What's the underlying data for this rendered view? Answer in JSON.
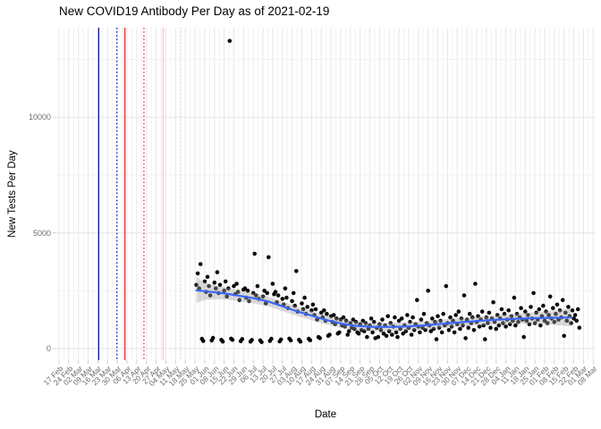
{
  "chart_data": {
    "type": "scatter",
    "title": "New COVID19 Antibody Per Day as of 2021-02-19",
    "xlabel": "Date",
    "ylabel": "New Tests Per Day",
    "y_ticks": [
      0,
      5000,
      10000
    ],
    "y_minor_ticks": [
      2500,
      7500,
      12500
    ],
    "x_tick_labels": [
      "17 Feb",
      "24 Feb",
      "02 Mar",
      "09 Mar",
      "16 Mar",
      "23 Mar",
      "30 Mar",
      "06 Apr",
      "13 Apr",
      "20 Apr",
      "27 Apr",
      "04 May",
      "11 May",
      "18 May",
      "25 May",
      "01 Jun",
      "08 Jun",
      "15 Jun",
      "22 Jun",
      "29 Jun",
      "06 Jul",
      "13 Jul",
      "20 Jul",
      "27 Jul",
      "03 Aug",
      "10 Aug",
      "17 Aug",
      "24 Aug",
      "31 Aug",
      "07 Sep",
      "14 Sep",
      "21 Sep",
      "28 Sep",
      "05 Oct",
      "12 Oct",
      "19 Oct",
      "26 Oct",
      "02 Nov",
      "09 Nov",
      "16 Nov",
      "23 Nov",
      "30 Nov",
      "07 Dec",
      "14 Dec",
      "21 Dec",
      "28 Dec",
      "04 Jan",
      "11 Jan",
      "18 Jan",
      "25 Jan",
      "01 Feb",
      "08 Feb",
      "15 Feb",
      "22 Feb",
      "01 Mar",
      "08 Mar"
    ],
    "x_tick_interval_days": 7,
    "grid": true,
    "legend": false,
    "points": [
      [
        99,
        2750
      ],
      [
        100,
        3250
      ],
      [
        101,
        2600
      ],
      [
        102,
        3650
      ],
      [
        103,
        420
      ],
      [
        104,
        330
      ],
      [
        105,
        2900
      ],
      [
        106,
        2450
      ],
      [
        107,
        3100
      ],
      [
        108,
        2700
      ],
      [
        109,
        2300
      ],
      [
        110,
        350
      ],
      [
        111,
        460
      ],
      [
        112,
        2850
      ],
      [
        113,
        2600
      ],
      [
        114,
        3300
      ],
      [
        115,
        2400
      ],
      [
        116,
        2750
      ],
      [
        117,
        380
      ],
      [
        118,
        300
      ],
      [
        119,
        2500
      ],
      [
        120,
        2900
      ],
      [
        121,
        2250
      ],
      [
        122,
        2600
      ],
      [
        123,
        13300
      ],
      [
        124,
        430
      ],
      [
        125,
        380
      ],
      [
        126,
        2700
      ],
      [
        127,
        2350
      ],
      [
        128,
        2800
      ],
      [
        129,
        2450
      ],
      [
        130,
        2100
      ],
      [
        131,
        320
      ],
      [
        132,
        410
      ],
      [
        133,
        2550
      ],
      [
        134,
        2600
      ],
      [
        135,
        2200
      ],
      [
        136,
        2500
      ],
      [
        137,
        2050
      ],
      [
        138,
        300
      ],
      [
        139,
        370
      ],
      [
        140,
        2400
      ],
      [
        141,
        4100
      ],
      [
        142,
        2300
      ],
      [
        143,
        2700
      ],
      [
        144,
        2150
      ],
      [
        145,
        350
      ],
      [
        146,
        280
      ],
      [
        147,
        2250
      ],
      [
        148,
        2500
      ],
      [
        149,
        1950
      ],
      [
        150,
        2400
      ],
      [
        151,
        3950
      ],
      [
        152,
        330
      ],
      [
        153,
        420
      ],
      [
        154,
        2800
      ],
      [
        155,
        2350
      ],
      [
        156,
        2450
      ],
      [
        157,
        2000
      ],
      [
        158,
        2300
      ],
      [
        159,
        310
      ],
      [
        160,
        390
      ],
      [
        161,
        2150
      ],
      [
        162,
        1900
      ],
      [
        163,
        2600
      ],
      [
        164,
        2200
      ],
      [
        165,
        1750
      ],
      [
        166,
        430
      ],
      [
        167,
        350
      ],
      [
        168,
        2050
      ],
      [
        169,
        2400
      ],
      [
        170,
        1850
      ],
      [
        171,
        3350
      ],
      [
        172,
        1600
      ],
      [
        173,
        380
      ],
      [
        174,
        300
      ],
      [
        175,
        1950
      ],
      [
        176,
        1700
      ],
      [
        177,
        2200
      ],
      [
        178,
        1500
      ],
      [
        179,
        1800
      ],
      [
        180,
        420
      ],
      [
        181,
        360
      ],
      [
        182,
        1650
      ],
      [
        183,
        1900
      ],
      [
        184,
        1450
      ],
      [
        185,
        1700
      ],
      [
        186,
        1250
      ],
      [
        187,
        500
      ],
      [
        188,
        450
      ],
      [
        189,
        1550
      ],
      [
        190,
        1350
      ],
      [
        191,
        1650
      ],
      [
        192,
        1200
      ],
      [
        193,
        1500
      ],
      [
        194,
        550
      ],
      [
        195,
        600
      ],
      [
        196,
        1400
      ],
      [
        197,
        1150
      ],
      [
        198,
        1450
      ],
      [
        199,
        1050
      ],
      [
        200,
        1300
      ],
      [
        201,
        650
      ],
      [
        202,
        700
      ],
      [
        203,
        1250
      ],
      [
        204,
        1000
      ],
      [
        205,
        1350
      ],
      [
        206,
        950
      ],
      [
        207,
        1200
      ],
      [
        208,
        600
      ],
      [
        209,
        750
      ],
      [
        210,
        1100
      ],
      [
        211,
        900
      ],
      [
        212,
        1250
      ],
      [
        213,
        850
      ],
      [
        214,
        1150
      ],
      [
        215,
        700
      ],
      [
        216,
        650
      ],
      [
        217,
        1050
      ],
      [
        218,
        800
      ],
      [
        219,
        1200
      ],
      [
        220,
        750
      ],
      [
        221,
        1100
      ],
      [
        222,
        500
      ],
      [
        223,
        850
      ],
      [
        224,
        1000
      ],
      [
        225,
        1300
      ],
      [
        226,
        700
      ],
      [
        227,
        1150
      ],
      [
        228,
        450
      ],
      [
        229,
        900
      ],
      [
        230,
        500
      ],
      [
        231,
        1050
      ],
      [
        232,
        800
      ],
      [
        233,
        1250
      ],
      [
        234,
        650
      ],
      [
        235,
        1000
      ],
      [
        236,
        550
      ],
      [
        237,
        1400
      ],
      [
        238,
        750
      ],
      [
        239,
        1100
      ],
      [
        240,
        600
      ],
      [
        241,
        950
      ],
      [
        242,
        1350
      ],
      [
        243,
        700
      ],
      [
        244,
        500
      ],
      [
        245,
        1200
      ],
      [
        246,
        850
      ],
      [
        247,
        1300
      ],
      [
        248,
        650
      ],
      [
        249,
        1000
      ],
      [
        250,
        750
      ],
      [
        251,
        1450
      ],
      [
        252,
        900
      ],
      [
        253,
        1150
      ],
      [
        254,
        600
      ],
      [
        255,
        1350
      ],
      [
        256,
        800
      ],
      [
        257,
        1050
      ],
      [
        258,
        2100
      ],
      [
        259,
        950
      ],
      [
        260,
        700
      ],
      [
        261,
        1250
      ],
      [
        262,
        900
      ],
      [
        263,
        1500
      ],
      [
        264,
        800
      ],
      [
        265,
        1100
      ],
      [
        266,
        2500
      ],
      [
        267,
        1000
      ],
      [
        268,
        750
      ],
      [
        269,
        1300
      ],
      [
        270,
        850
      ],
      [
        271,
        1150
      ],
      [
        272,
        400
      ],
      [
        273,
        1400
      ],
      [
        274,
        900
      ],
      [
        275,
        1200
      ],
      [
        276,
        700
      ],
      [
        277,
        1500
      ],
      [
        278,
        1000
      ],
      [
        279,
        2700
      ],
      [
        280,
        1100
      ],
      [
        281,
        800
      ],
      [
        282,
        1350
      ],
      [
        283,
        950
      ],
      [
        284,
        1200
      ],
      [
        285,
        700
      ],
      [
        286,
        1450
      ],
      [
        287,
        1050
      ],
      [
        288,
        1600
      ],
      [
        289,
        850
      ],
      [
        290,
        1300
      ],
      [
        291,
        1000
      ],
      [
        292,
        2300
      ],
      [
        293,
        450
      ],
      [
        294,
        1250
      ],
      [
        295,
        900
      ],
      [
        296,
        1500
      ],
      [
        297,
        1100
      ],
      [
        298,
        1350
      ],
      [
        299,
        800
      ],
      [
        300,
        2800
      ],
      [
        301,
        1150
      ],
      [
        302,
        1400
      ],
      [
        303,
        950
      ],
      [
        304,
        1250
      ],
      [
        305,
        1600
      ],
      [
        306,
        1000
      ],
      [
        307,
        400
      ],
      [
        308,
        1350
      ],
      [
        309,
        1100
      ],
      [
        310,
        1550
      ],
      [
        311,
        900
      ],
      [
        312,
        1300
      ],
      [
        313,
        2000
      ],
      [
        314,
        1150
      ],
      [
        315,
        850
      ],
      [
        316,
        1450
      ],
      [
        317,
        1000
      ],
      [
        318,
        1300
      ],
      [
        319,
        1700
      ],
      [
        320,
        1100
      ],
      [
        321,
        1500
      ],
      [
        322,
        950
      ],
      [
        323,
        1250
      ],
      [
        324,
        1650
      ],
      [
        325,
        1050
      ],
      [
        326,
        1400
      ],
      [
        327,
        1200
      ],
      [
        328,
        2200
      ],
      [
        329,
        1000
      ],
      [
        330,
        1500
      ],
      [
        331,
        1150
      ],
      [
        332,
        1350
      ],
      [
        333,
        1750
      ],
      [
        334,
        1250
      ],
      [
        335,
        500
      ],
      [
        336,
        1600
      ],
      [
        337,
        1200
      ],
      [
        338,
        1450
      ],
      [
        339,
        1050
      ],
      [
        340,
        1800
      ],
      [
        341,
        1300
      ],
      [
        342,
        2400
      ],
      [
        343,
        1100
      ],
      [
        344,
        1550
      ],
      [
        345,
        1250
      ],
      [
        346,
        1700
      ],
      [
        347,
        1000
      ],
      [
        348,
        1400
      ],
      [
        349,
        1850
      ],
      [
        350,
        1200
      ],
      [
        351,
        1600
      ],
      [
        352,
        1100
      ],
      [
        353,
        1450
      ],
      [
        354,
        2250
      ],
      [
        355,
        1300
      ],
      [
        356,
        1750
      ],
      [
        357,
        1150
      ],
      [
        358,
        1500
      ],
      [
        359,
        1900
      ],
      [
        360,
        1250
      ],
      [
        361,
        1650
      ],
      [
        362,
        1350
      ],
      [
        363,
        2100
      ],
      [
        364,
        550
      ],
      [
        365,
        1550
      ],
      [
        366,
        1200
      ],
      [
        367,
        1800
      ],
      [
        368,
        1400
      ],
      [
        369,
        1100
      ],
      [
        370,
        1650
      ],
      [
        371,
        1300
      ],
      [
        372,
        1450
      ],
      [
        373,
        1200
      ],
      [
        374,
        1700
      ],
      [
        375,
        900
      ]
    ],
    "smooth_line": {
      "knots": [
        [
          99,
          2520
        ],
        [
          110,
          2450
        ],
        [
          120,
          2380
        ],
        [
          130,
          2280
        ],
        [
          140,
          2180
        ],
        [
          150,
          2050
        ],
        [
          160,
          1850
        ],
        [
          170,
          1640
        ],
        [
          180,
          1460
        ],
        [
          193,
          1230
        ],
        [
          205,
          1060
        ],
        [
          215,
          975
        ],
        [
          228,
          935
        ],
        [
          240,
          935
        ],
        [
          252,
          960
        ],
        [
          265,
          1010
        ],
        [
          278,
          1080
        ],
        [
          292,
          1150
        ],
        [
          305,
          1205
        ],
        [
          318,
          1255
        ],
        [
          330,
          1290
        ],
        [
          342,
          1315
        ],
        [
          355,
          1330
        ],
        [
          371,
          1345
        ]
      ]
    },
    "ribbon_half_width": [
      [
        99,
        560
      ],
      [
        105,
        380
      ],
      [
        115,
        280
      ],
      [
        130,
        230
      ],
      [
        150,
        210
      ],
      [
        170,
        200
      ],
      [
        193,
        195
      ],
      [
        215,
        185
      ],
      [
        240,
        180
      ],
      [
        265,
        175
      ],
      [
        292,
        185
      ],
      [
        318,
        200
      ],
      [
        340,
        240
      ],
      [
        355,
        300
      ],
      [
        371,
        390
      ]
    ],
    "event_lines": [
      {
        "day": 28.6,
        "style": "solid",
        "color": "#0000CC"
      },
      {
        "day": 41.7,
        "style": "dotted",
        "color": "#0000CC"
      },
      {
        "day": 47.5,
        "style": "solid",
        "color": "#EE1111"
      },
      {
        "day": 61.2,
        "style": "dotted",
        "color": "#EE1111"
      },
      {
        "day": 75.0,
        "style": "solid",
        "color": "#FFBFCB"
      },
      {
        "day": 87.7,
        "style": "dotted",
        "color": "#FFBFCB"
      }
    ],
    "colors": {
      "point": "#000000",
      "smooth_line": "#3A66F8",
      "ribbon": "#9E9E9E",
      "grid_major": "#E6E6E6",
      "grid_minor": "#F2F2F2",
      "tick_mark": "#D0D0D0",
      "axis_text": "#6D6D6D",
      "title_text": "#000000",
      "background": "#FFFFFF"
    }
  }
}
